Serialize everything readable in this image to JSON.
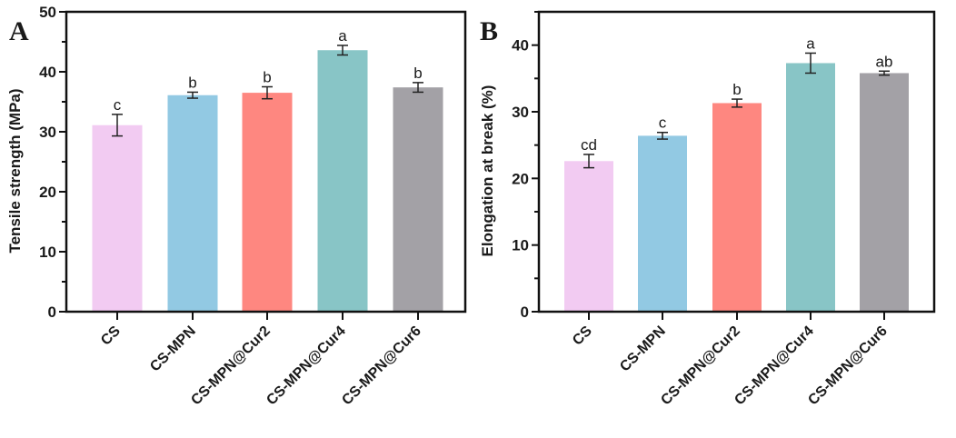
{
  "chart_data": [
    {
      "type": "bar",
      "panel_label": "A",
      "categories": [
        "CS",
        "CS-MPN",
        "CS-MPN@Cur2",
        "CS-MPN@Cur4",
        "CS-MPN@Cur6"
      ],
      "values": [
        31.1,
        36.1,
        36.5,
        43.6,
        37.4
      ],
      "errors": [
        1.8,
        0.5,
        1.0,
        0.8,
        0.8
      ],
      "significance": [
        "c",
        "b",
        "b",
        "a",
        "b"
      ],
      "colors": [
        "#f2cbf2",
        "#92c9e3",
        "#fe8780",
        "#88c5c6",
        "#a3a1a6"
      ],
      "xlabel": "",
      "ylabel": "Tensile strength (MPa)",
      "ylim": [
        0,
        50
      ],
      "yticks": [
        0,
        10,
        20,
        30,
        40,
        50
      ],
      "grid": false
    },
    {
      "type": "bar",
      "panel_label": "B",
      "categories": [
        "CS",
        "CS-MPN",
        "CS-MPN@Cur2",
        "CS-MPN@Cur4",
        "CS-MPN@Cur6"
      ],
      "values": [
        22.6,
        26.4,
        31.3,
        37.3,
        35.8
      ],
      "errors": [
        1.0,
        0.5,
        0.6,
        1.5,
        0.3
      ],
      "significance": [
        "cd",
        "c",
        "b",
        "a",
        "ab"
      ],
      "colors": [
        "#f2cbf2",
        "#92c9e3",
        "#fe8780",
        "#88c5c6",
        "#a3a1a6"
      ],
      "xlabel": "",
      "ylabel": "Elongation at break (%)",
      "ylim": [
        0,
        45
      ],
      "yticks": [
        0,
        10,
        20,
        30,
        40
      ],
      "grid": false
    }
  ]
}
